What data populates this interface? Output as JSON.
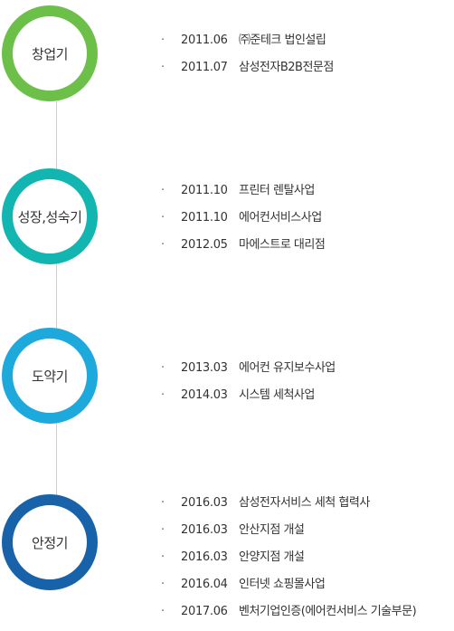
{
  "colors": {
    "stage_1_ring": "#6cc04a",
    "stage_2_ring": "#13b5b1",
    "stage_3_ring": "#1da9dc",
    "stage_4_ring": "#1762a8",
    "connector_line": "#cfcfcf",
    "text": "#333333"
  },
  "bullet": "·",
  "stages": [
    {
      "label": "창업기",
      "items": [
        {
          "date": "2011.06",
          "text": "㈜준테크 법인설립"
        },
        {
          "date": "2011.07",
          "text": "삼성전자B2B전문점"
        }
      ]
    },
    {
      "label": "성장,성숙기",
      "items": [
        {
          "date": "2011.10",
          "text": "프린터 렌탈사업"
        },
        {
          "date": "2011.10",
          "text": "에어컨서비스사업"
        },
        {
          "date": "2012.05",
          "text": "마에스트로 대리점"
        }
      ]
    },
    {
      "label": "도약기",
      "items": [
        {
          "date": "2013.03",
          "text": "에어컨 유지보수사업"
        },
        {
          "date": "2014.03",
          "text": "시스템 세척사업"
        }
      ]
    },
    {
      "label": "안정기",
      "items": [
        {
          "date": "2016.03",
          "text": "삼성전자서비스 세척 협력사"
        },
        {
          "date": "2016.03",
          "text": "안산지점 개설"
        },
        {
          "date": "2016.03",
          "text": "안양지점 개설"
        },
        {
          "date": "2016.04",
          "text": "인터넷 쇼핑몰사업"
        },
        {
          "date": "2017.06",
          "text": "벤처기업인증(에어컨서비스 기술부문)"
        }
      ]
    }
  ]
}
